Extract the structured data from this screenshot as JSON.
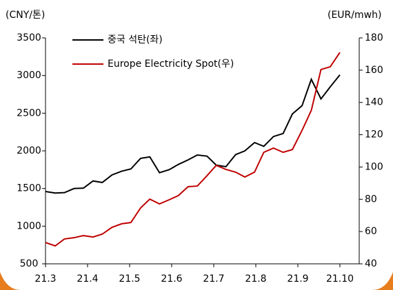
{
  "chart_data": {
    "type": "line",
    "y_label": "(CNY/톤)",
    "y2_label": "(EUR/mwh)",
    "x": [
      0,
      0.23,
      0.45,
      0.68,
      0.9,
      1.13,
      1.35,
      1.58,
      1.81,
      2.03,
      2.26,
      2.48,
      2.71,
      2.94,
      3.16,
      3.39,
      3.61,
      3.84,
      4.06,
      4.29,
      4.52,
      4.74,
      4.97,
      5.19,
      5.42,
      5.65,
      5.87,
      6.1,
      6.32,
      6.55,
      6.77,
      7
    ],
    "xlim": [
      0,
      7
    ],
    "xticks": [
      {
        "value": 0,
        "label": "21.3"
      },
      {
        "value": 1,
        "label": "21.4"
      },
      {
        "value": 2,
        "label": "21.5"
      },
      {
        "value": 3,
        "label": "21.6"
      },
      {
        "value": 4,
        "label": "21.7"
      },
      {
        "value": 5,
        "label": "21.8"
      },
      {
        "value": 6,
        "label": "21.9"
      },
      {
        "value": 7,
        "label": "21.10"
      }
    ],
    "ylim": [
      500,
      3500
    ],
    "yticks": [
      500,
      1000,
      1500,
      2000,
      2500,
      3000,
      3500
    ],
    "y2lim": [
      40,
      180
    ],
    "y2ticks": [
      40,
      60,
      80,
      100,
      120,
      140,
      160,
      180
    ],
    "series": [
      {
        "name": "중국 석탄(좌)",
        "color": "#000000",
        "values": [
          1460,
          1440,
          1445,
          1500,
          1505,
          1600,
          1580,
          1680,
          1730,
          1760,
          1900,
          1920,
          1710,
          1750,
          1820,
          1880,
          1945,
          1930,
          1810,
          1790,
          1950,
          2000,
          2110,
          2060,
          2190,
          2230,
          2490,
          2600,
          2950,
          2690,
          2850,
          3010
        ]
      },
      {
        "name": "Europe Electricity Spot(우)",
        "color": "#c00000",
        "axis": "y2",
        "values": [
          53.2,
          51.1,
          55.4,
          56.2,
          57.5,
          56.6,
          58.4,
          62.6,
          64.8,
          65.6,
          74.6,
          80.1,
          77.1,
          79.7,
          82.3,
          87.8,
          88.2,
          94.6,
          101,
          98.5,
          96.8,
          93.8,
          96.8,
          109.1,
          111.7,
          109.1,
          110.8,
          122.7,
          135.1,
          160.4,
          162.1,
          171
        ]
      }
    ]
  }
}
